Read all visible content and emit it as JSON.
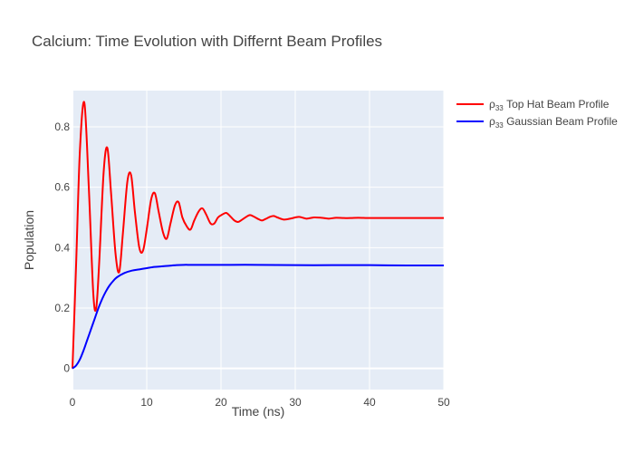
{
  "chart_data": {
    "type": "line",
    "title": "Calcium: Time Evolution with Differnt Beam Profiles",
    "xlabel": "Time (ns)",
    "ylabel": "Population",
    "xlim": [
      0,
      50
    ],
    "ylim": [
      -0.07,
      0.92
    ],
    "xticks": [
      0,
      10,
      20,
      30,
      40,
      50
    ],
    "yticks": [
      0,
      0.2,
      0.4,
      0.6,
      0.8
    ],
    "ytick_labels": [
      "0",
      "0.2",
      "0.4",
      "0.6",
      "0.8"
    ],
    "grid": true,
    "plot_bgcolor": "#e5ecf6",
    "legend_position": "top-right, outside plot",
    "series": [
      {
        "name": "ρ33 Top Hat Beam Profile",
        "legend_base": "ρ",
        "legend_sub": "33",
        "legend_rest": " Top Hat Beam Profile",
        "color": "#ff0000",
        "x": [
          0,
          0.5,
          1.0,
          1.6,
          2.2,
          2.8,
          3.2,
          3.6,
          4.2,
          4.7,
          5.2,
          5.8,
          6.3,
          6.8,
          7.4,
          7.9,
          8.4,
          9.0,
          9.5,
          10.0,
          10.6,
          11.1,
          11.6,
          12.2,
          12.7,
          13.2,
          13.8,
          14.3,
          14.8,
          15.4,
          15.9,
          16.4,
          17.0,
          17.5,
          18.0,
          18.6,
          19.1,
          19.6,
          20.2,
          20.7,
          21.2,
          21.8,
          22.3,
          22.8,
          23.4,
          23.9,
          24.4,
          25.0,
          25.5,
          26.0,
          26.6,
          27.1,
          27.6,
          28.5,
          29.5,
          30.5,
          31.5,
          32.5,
          33.5,
          34.5,
          35.5,
          36.5,
          37.5,
          38.5,
          40,
          42,
          45,
          50
        ],
        "y": [
          0,
          0.35,
          0.72,
          0.88,
          0.6,
          0.25,
          0.2,
          0.35,
          0.65,
          0.73,
          0.58,
          0.38,
          0.32,
          0.45,
          0.62,
          0.64,
          0.52,
          0.4,
          0.39,
          0.46,
          0.56,
          0.58,
          0.52,
          0.45,
          0.43,
          0.48,
          0.54,
          0.55,
          0.5,
          0.47,
          0.46,
          0.49,
          0.52,
          0.53,
          0.51,
          0.48,
          0.48,
          0.5,
          0.51,
          0.515,
          0.505,
          0.49,
          0.485,
          0.492,
          0.502,
          0.508,
          0.503,
          0.495,
          0.49,
          0.495,
          0.502,
          0.505,
          0.5,
          0.493,
          0.497,
          0.502,
          0.496,
          0.5,
          0.499,
          0.496,
          0.499,
          0.498,
          0.498,
          0.499,
          0.498,
          0.498,
          0.498,
          0.498
        ]
      },
      {
        "name": "ρ33 Gaussian Beam Profile",
        "legend_base": "ρ",
        "legend_sub": "33",
        "legend_rest": " Gaussian Beam Profile",
        "color": "#0000ff",
        "x": [
          0,
          0.5,
          1.0,
          1.5,
          2.0,
          2.5,
          3.0,
          3.5,
          4.0,
          4.5,
          5.0,
          5.5,
          6.0,
          7.0,
          8.0,
          9.0,
          10.0,
          11.0,
          12.0,
          13.0,
          14.0,
          15.0,
          16.0,
          18.0,
          20.0,
          25.0,
          30.0,
          35.0,
          40.0,
          45.0,
          50.0
        ],
        "y": [
          0,
          0.01,
          0.03,
          0.06,
          0.095,
          0.13,
          0.165,
          0.2,
          0.23,
          0.255,
          0.275,
          0.29,
          0.302,
          0.316,
          0.324,
          0.328,
          0.332,
          0.336,
          0.338,
          0.34,
          0.342,
          0.343,
          0.343,
          0.343,
          0.343,
          0.343,
          0.342,
          0.342,
          0.342,
          0.341,
          0.341
        ]
      }
    ]
  }
}
